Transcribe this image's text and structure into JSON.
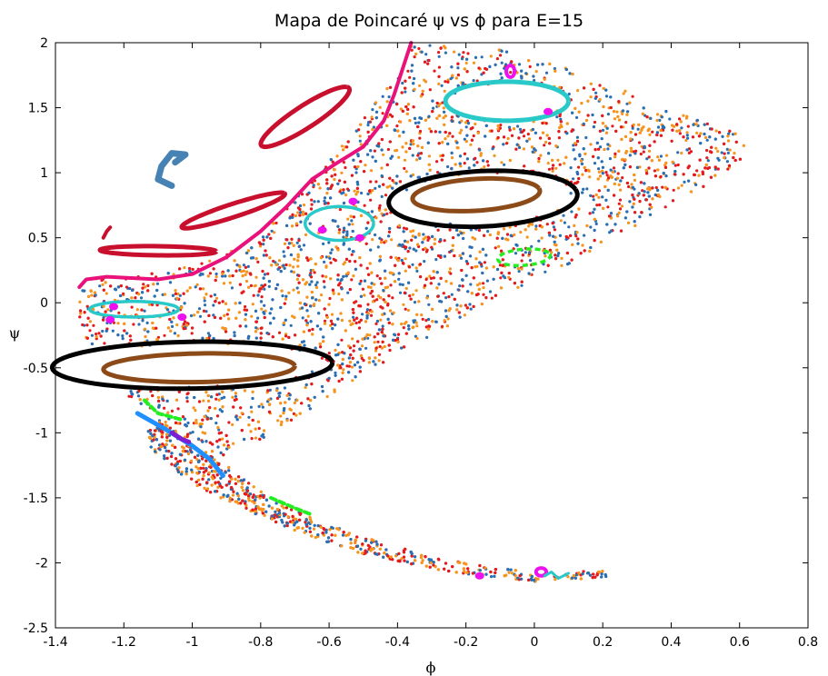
{
  "chart_data": {
    "type": "scatter",
    "title": "Mapa de Poincaré ψ vs ϕ para E=15",
    "xlabel": "ϕ",
    "ylabel": "ψ",
    "xlim": [
      -1.4,
      0.8
    ],
    "ylim": [
      -2.5,
      2
    ],
    "xticks": [
      "-1.4",
      "-1.2",
      "-1",
      "-0.8",
      "-0.6",
      "-0.4",
      "-0.2",
      "0",
      "0.2",
      "0.4",
      "0.6",
      "0.8"
    ],
    "yticks": [
      "-2.5",
      "-2",
      "-1.5",
      "-1",
      "-0.5",
      "0",
      "0.5",
      "1",
      "1.5",
      "2"
    ],
    "grid": false,
    "legend": "none",
    "colors": {
      "chaotic_red": "#e41a1c",
      "chaotic_orange": "#f7941d",
      "chaotic_blue": "#2a6fb3",
      "boundary": "#e8127a",
      "black": "#000000",
      "brown": "#8b4a18",
      "cyan": "#29c9c9",
      "magenta": "#ee10ee",
      "green": "#22ee22",
      "crimson": "#c8102e",
      "steelblue": "#4682b4",
      "skyblue": "#1e90ff",
      "purple": "#7b1fd1"
    },
    "chaotic_sea": {
      "colors": [
        "#e41a1c",
        "#f7941d",
        "#2a6fb3"
      ],
      "upper_branch_envelope": [
        [
          -1.33,
          0.18
        ],
        [
          -1.2,
          0.2
        ],
        [
          -1.0,
          0.28
        ],
        [
          -0.85,
          0.45
        ],
        [
          -0.7,
          0.8
        ],
        [
          -0.58,
          1.15
        ],
        [
          -0.48,
          1.5
        ],
        [
          -0.4,
          1.75
        ],
        [
          -0.36,
          2.0
        ],
        [
          -0.1,
          1.95
        ],
        [
          0.1,
          1.8
        ],
        [
          0.3,
          1.6
        ],
        [
          0.45,
          1.45
        ],
        [
          0.6,
          1.3
        ],
        [
          0.63,
          1.1
        ],
        [
          0.5,
          0.9
        ],
        [
          0.3,
          0.6
        ],
        [
          0.1,
          0.3
        ],
        [
          -0.1,
          0.05
        ],
        [
          -0.3,
          -0.25
        ],
        [
          -0.5,
          -0.55
        ],
        [
          -0.7,
          -0.9
        ],
        [
          -0.9,
          -1.2
        ],
        [
          -1.05,
          -1.0
        ],
        [
          -1.2,
          -0.7
        ],
        [
          -1.3,
          -0.4
        ],
        [
          -1.34,
          -0.05
        ]
      ],
      "lower_branch_envelope": [
        [
          -1.1,
          -0.9
        ],
        [
          -0.9,
          -1.25
        ],
        [
          -0.75,
          -1.55
        ],
        [
          -0.5,
          -1.8
        ],
        [
          -0.3,
          -1.95
        ],
        [
          0,
          -2.08
        ],
        [
          0.26,
          -2.05
        ],
        [
          0.2,
          -2.12
        ],
        [
          0,
          -2.15
        ],
        [
          -0.3,
          -2.05
        ],
        [
          -0.55,
          -1.9
        ],
        [
          -0.8,
          -1.65
        ],
        [
          -1.0,
          -1.4
        ],
        [
          -1.15,
          -1.05
        ]
      ]
    },
    "series": [
      {
        "kind": "boundary",
        "color": "#e8127a",
        "points": [
          [
            -1.33,
            0.12
          ],
          [
            -1.31,
            0.18
          ],
          [
            -1.25,
            0.2
          ],
          [
            -1.1,
            0.18
          ],
          [
            -1.0,
            0.22
          ],
          [
            -0.9,
            0.35
          ],
          [
            -0.8,
            0.55
          ],
          [
            -0.72,
            0.75
          ],
          [
            -0.65,
            0.95
          ],
          [
            -0.58,
            1.07
          ],
          [
            -0.5,
            1.2
          ],
          [
            -0.44,
            1.4
          ],
          [
            -0.41,
            1.6
          ],
          [
            -0.385,
            1.8
          ],
          [
            -0.36,
            2.0
          ]
        ]
      },
      {
        "kind": "closed",
        "color": "#000000",
        "center": [
          -0.15,
          0.8
        ],
        "a": 0.28,
        "b": 0.21,
        "tilt_deg": 15,
        "dash": false
      },
      {
        "kind": "closed",
        "color": "#8b4a18",
        "center": [
          -0.17,
          0.83
        ],
        "a": 0.19,
        "b": 0.12,
        "tilt_deg": 15,
        "dash": false
      },
      {
        "kind": "closed",
        "color": "#000000",
        "center": [
          -1.0,
          -0.48
        ],
        "a": 0.41,
        "b": 0.18,
        "tilt_deg": 3,
        "dash": false
      },
      {
        "kind": "closed",
        "color": "#8b4a18",
        "center": [
          -0.98,
          -0.5
        ],
        "a": 0.28,
        "b": 0.11,
        "tilt_deg": 3,
        "dash": false
      },
      {
        "kind": "closed",
        "color": "#c8102e",
        "center": [
          -0.67,
          1.43
        ],
        "a": 0.26,
        "b": 0.05,
        "tilt_deg": 62,
        "dash": false
      },
      {
        "kind": "closed",
        "color": "#c8102e",
        "center": [
          -0.88,
          0.71
        ],
        "a": 0.2,
        "b": 0.04,
        "tilt_deg": 42,
        "dash": false
      },
      {
        "kind": "closed",
        "color": "#c8102e",
        "center": [
          -1.1,
          0.4
        ],
        "a": 0.17,
        "b": 0.035,
        "tilt_deg": -2,
        "dash": false
      },
      {
        "kind": "closed",
        "color": "#22ee22",
        "center": [
          -0.03,
          0.35
        ],
        "a": 0.08,
        "b": 0.06,
        "tilt_deg": 25,
        "dash": true
      },
      {
        "kind": "closed",
        "color": "#29c9c9",
        "center": [
          -0.57,
          0.61
        ],
        "a": 0.1,
        "b": 0.13,
        "tilt_deg": 0,
        "dash": false
      },
      {
        "kind": "closed",
        "color": "#29c9c9",
        "center": [
          -1.17,
          -0.05
        ],
        "a": 0.13,
        "b": 0.06,
        "tilt_deg": 0,
        "dash": false
      },
      {
        "kind": "closed",
        "color": "#29c9c9",
        "center": [
          -0.08,
          1.55
        ],
        "a": 0.18,
        "b": 0.15,
        "tilt_deg": 0,
        "dash": false
      },
      {
        "kind": "closed",
        "color": "#ee10ee",
        "center": [
          -0.07,
          1.78
        ],
        "a": 0.012,
        "b": 0.045,
        "tilt_deg": 0,
        "dash": false
      },
      {
        "kind": "closed",
        "color": "#ee10ee",
        "center": [
          0.02,
          -2.07
        ],
        "a": 0.015,
        "b": 0.03,
        "tilt_deg": 0,
        "dash": false
      },
      {
        "kind": "curve",
        "color": "#4682b4",
        "width": 7,
        "points": [
          [
            -1.05,
            1.08
          ],
          [
            -1.02,
            1.14
          ],
          [
            -1.06,
            1.15
          ],
          [
            -1.09,
            1.05
          ],
          [
            -1.1,
            0.95
          ],
          [
            -1.06,
            0.9
          ]
        ]
      },
      {
        "kind": "curve",
        "color": "#c8102e",
        "width": 4,
        "points": [
          [
            -1.26,
            0.5
          ],
          [
            -1.25,
            0.55
          ],
          [
            -1.24,
            0.58
          ]
        ]
      },
      {
        "kind": "curve",
        "color": "#1e90ff",
        "width": 5,
        "points": [
          [
            -1.16,
            -0.85
          ],
          [
            -1.08,
            -0.97
          ],
          [
            -1.0,
            -1.1
          ],
          [
            -0.95,
            -1.2
          ],
          [
            -0.91,
            -1.33
          ]
        ]
      },
      {
        "kind": "curve",
        "color": "#22ee22",
        "width": 4,
        "dash": true,
        "points": [
          [
            -1.14,
            -0.75
          ],
          [
            -1.1,
            -0.85
          ],
          [
            -1.03,
            -0.9
          ]
        ]
      },
      {
        "kind": "curve",
        "color": "#22ee22",
        "width": 4,
        "dash": true,
        "points": [
          [
            -0.77,
            -1.5
          ],
          [
            -0.7,
            -1.58
          ],
          [
            -0.65,
            -1.63
          ]
        ]
      },
      {
        "kind": "curve",
        "color": "#7b1fd1",
        "width": 5,
        "points": [
          [
            -1.06,
            -1.0
          ],
          [
            -1.03,
            -1.05
          ],
          [
            -1.01,
            -1.07
          ]
        ]
      },
      {
        "kind": "curve",
        "color": "#29c9c9",
        "width": 3,
        "points": [
          [
            0.03,
            -2.1
          ],
          [
            0.05,
            -2.07
          ],
          [
            0.07,
            -2.12
          ],
          [
            0.1,
            -2.08
          ]
        ]
      },
      {
        "kind": "dots",
        "color": "#ee10ee",
        "points": [
          [
            -0.53,
            0.78
          ],
          [
            -0.62,
            0.56
          ],
          [
            -0.51,
            0.5
          ],
          [
            -1.23,
            -0.03
          ],
          [
            -1.24,
            -0.13
          ],
          [
            -1.03,
            -0.11
          ],
          [
            0.04,
            1.47
          ],
          [
            -0.16,
            -2.1
          ]
        ]
      }
    ]
  }
}
